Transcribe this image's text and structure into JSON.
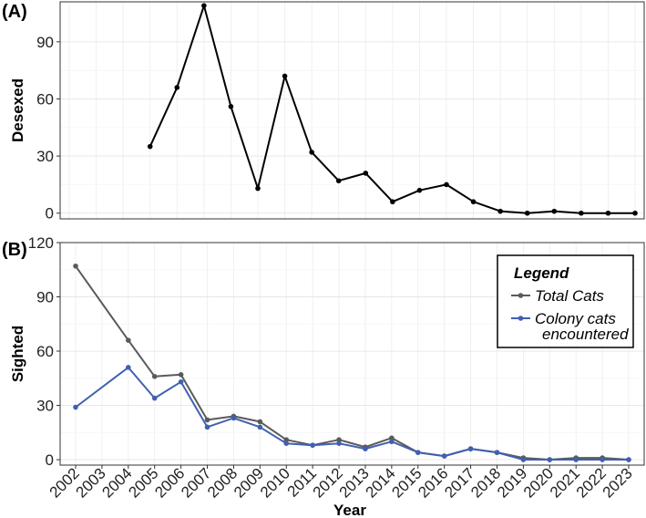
{
  "chart_data": [
    {
      "panel_label": "(A)",
      "type": "line",
      "ylabel": "Desexed",
      "xlim": [
        2002,
        2023
      ],
      "ylim": [
        -3,
        111
      ],
      "yticks": [
        0,
        30,
        60,
        90
      ],
      "grid": true,
      "series": [
        {
          "color": "#000000",
          "x": [
            2005,
            2006,
            2007,
            2008,
            2009,
            2010,
            2011,
            2012,
            2013,
            2014,
            2015,
            2016,
            2017,
            2018,
            2019,
            2020,
            2021,
            2022,
            2023
          ],
          "values": [
            35,
            66,
            109,
            56,
            13,
            72,
            32,
            17,
            21,
            6,
            12,
            15,
            6,
            1,
            0,
            1,
            0,
            0,
            0
          ]
        }
      ]
    },
    {
      "panel_label": "(B)",
      "type": "line",
      "ylabel": "Sighted",
      "xlabel": "Year",
      "xlim": [
        2002,
        2023
      ],
      "ylim": [
        -3,
        120
      ],
      "yticks": [
        0,
        30,
        60,
        90,
        120
      ],
      "xticks": [
        "2002",
        "2003",
        "2004",
        "2005",
        "2006",
        "2007",
        "2008",
        "2009",
        "2010",
        "2011",
        "2012",
        "2013",
        "2014",
        "2015",
        "2016",
        "2017",
        "2018",
        "2019",
        "2020",
        "2021",
        "2022",
        "2023"
      ],
      "grid": true,
      "legend": {
        "title": "Legend",
        "position": "top-right"
      },
      "series": [
        {
          "name": "Total Cats",
          "color": "#5a5a5a",
          "x": [
            2002,
            2004,
            2005,
            2006,
            2007,
            2008,
            2009,
            2010,
            2011,
            2012,
            2013,
            2014,
            2015,
            2016,
            2017,
            2018,
            2019,
            2020,
            2021,
            2022,
            2023
          ],
          "values": [
            107,
            66,
            46,
            47,
            22,
            24,
            21,
            11,
            8,
            11,
            7,
            12,
            4,
            2,
            6,
            4,
            1,
            0,
            1,
            1,
            0
          ]
        },
        {
          "name": "Colony cats encountered",
          "name_lines": [
            "Colony cats",
            "encountered"
          ],
          "color": "#4060b0",
          "x": [
            2002,
            2004,
            2005,
            2006,
            2007,
            2008,
            2009,
            2010,
            2011,
            2012,
            2013,
            2014,
            2015,
            2016,
            2017,
            2018,
            2019,
            2020,
            2021,
            2022,
            2023
          ],
          "values": [
            29,
            51,
            34,
            43,
            18,
            23,
            18,
            9,
            8,
            9,
            6,
            10,
            4,
            2,
            6,
            4,
            0,
            0,
            0,
            0,
            0
          ]
        }
      ]
    }
  ]
}
